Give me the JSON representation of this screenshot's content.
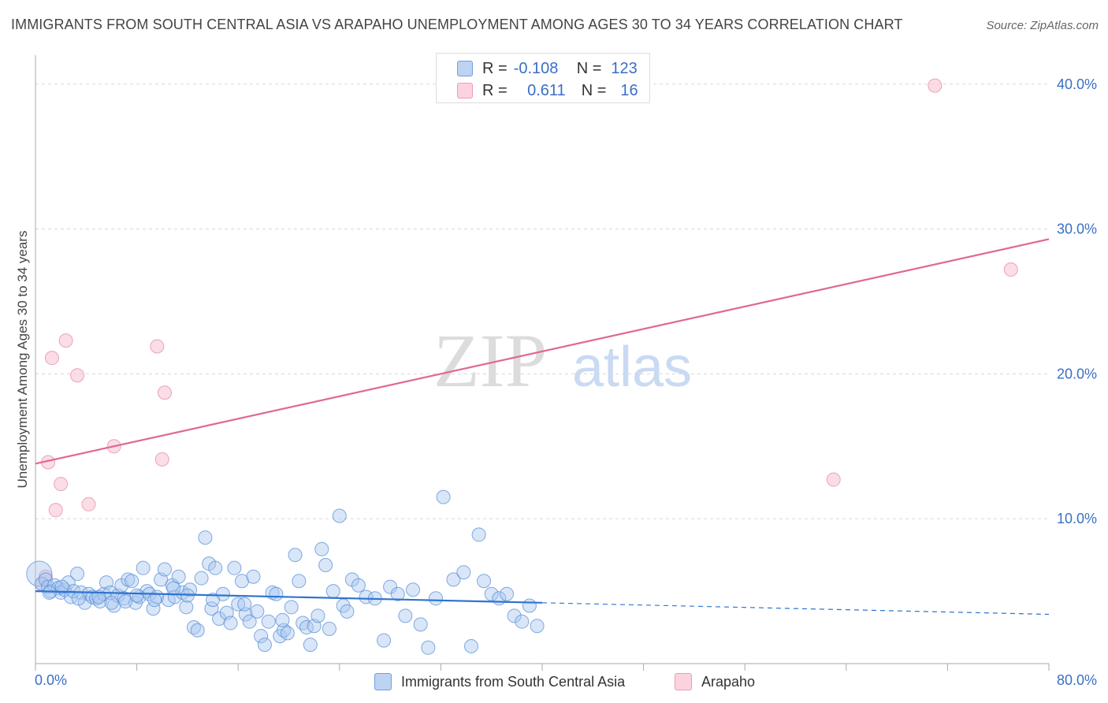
{
  "title": "IMMIGRANTS FROM SOUTH CENTRAL ASIA VS ARAPAHO UNEMPLOYMENT AMONG AGES 30 TO 34 YEARS CORRELATION CHART",
  "source": "Source: ZipAtlas.com",
  "watermark": {
    "zip": "ZIP",
    "atlas": "atlas"
  },
  "legend": {
    "rows": [
      {
        "r_label": "R =",
        "r_value": "-0.108",
        "n_label": "N =",
        "n_value": "123",
        "color": "#6fa0e0"
      },
      {
        "r_label": "R =",
        "r_value": "0.611",
        "n_label": "N =",
        "n_value": "16",
        "color": "#f09ab4"
      }
    ]
  },
  "bottom_legend": {
    "series1": "Immigrants from South Central Asia",
    "series2": "Arapaho"
  },
  "colors": {
    "blue_fill": "#a9c8f0",
    "blue_stroke": "#5b8fd6",
    "blue_line": "#2f74d0",
    "pink_fill": "#f7c6d4",
    "pink_stroke": "#e98fab",
    "pink_line": "#e06890",
    "tick_text": "#3a6fc4",
    "grid": "#d8d8d8"
  },
  "chart_data": {
    "type": "scatter",
    "title": "IMMIGRANTS FROM SOUTH CENTRAL ASIA VS ARAPAHO UNEMPLOYMENT AMONG AGES 30 TO 34 YEARS CORRELATION CHART",
    "xlabel": "",
    "ylabel": "Unemployment Among Ages 30 to 34 years",
    "xlim": [
      0,
      80
    ],
    "ylim": [
      0,
      42
    ],
    "x_tick_labels": [
      "0.0%",
      "80.0%"
    ],
    "y_ticks": [
      10,
      20,
      30,
      40
    ],
    "y_tick_labels": [
      "10.0%",
      "20.0%",
      "30.0%",
      "40.0%"
    ],
    "grid": true,
    "legend_position": "top-center",
    "series": [
      {
        "name": "Immigrants from South Central Asia",
        "r": -0.108,
        "n": 123,
        "trend": {
          "x": [
            0,
            40
          ],
          "y": [
            5.0,
            4.2
          ],
          "dashed_x": [
            40,
            80
          ],
          "dashed_y": [
            4.2,
            3.4
          ]
        },
        "points": [
          [
            0.3,
            6.2
          ],
          [
            0.5,
            5.5
          ],
          [
            0.8,
            5.8
          ],
          [
            1.0,
            5.3
          ],
          [
            1.2,
            5.0
          ],
          [
            1.5,
            5.4
          ],
          [
            1.8,
            5.2
          ],
          [
            2.0,
            4.9
          ],
          [
            2.3,
            5.1
          ],
          [
            2.6,
            5.6
          ],
          [
            2.8,
            4.6
          ],
          [
            3.0,
            5.0
          ],
          [
            3.3,
            6.2
          ],
          [
            3.6,
            4.9
          ],
          [
            3.9,
            4.2
          ],
          [
            4.2,
            4.8
          ],
          [
            4.5,
            4.6
          ],
          [
            4.8,
            4.5
          ],
          [
            5.1,
            4.3
          ],
          [
            5.4,
            4.8
          ],
          [
            5.6,
            5.6
          ],
          [
            5.9,
            4.9
          ],
          [
            6.2,
            4.0
          ],
          [
            6.5,
            4.7
          ],
          [
            6.8,
            5.4
          ],
          [
            7.0,
            4.5
          ],
          [
            7.3,
            5.8
          ],
          [
            7.6,
            5.7
          ],
          [
            7.9,
            4.2
          ],
          [
            8.2,
            4.6
          ],
          [
            8.5,
            6.6
          ],
          [
            8.8,
            5.0
          ],
          [
            9.0,
            4.8
          ],
          [
            9.3,
            3.8
          ],
          [
            9.6,
            4.6
          ],
          [
            9.9,
            5.8
          ],
          [
            10.2,
            6.5
          ],
          [
            10.5,
            4.4
          ],
          [
            10.8,
            5.4
          ],
          [
            11.0,
            4.6
          ],
          [
            11.3,
            6.0
          ],
          [
            11.6,
            4.9
          ],
          [
            11.9,
            3.9
          ],
          [
            12.2,
            5.1
          ],
          [
            12.5,
            2.5
          ],
          [
            12.8,
            2.3
          ],
          [
            13.1,
            5.9
          ],
          [
            13.4,
            8.7
          ],
          [
            13.7,
            6.9
          ],
          [
            13.9,
            3.8
          ],
          [
            14.2,
            6.6
          ],
          [
            14.5,
            3.1
          ],
          [
            14.8,
            4.8
          ],
          [
            15.1,
            3.5
          ],
          [
            15.4,
            2.8
          ],
          [
            15.7,
            6.6
          ],
          [
            16.0,
            4.1
          ],
          [
            16.3,
            5.7
          ],
          [
            16.6,
            3.4
          ],
          [
            16.9,
            2.9
          ],
          [
            17.2,
            6.0
          ],
          [
            17.5,
            3.6
          ],
          [
            17.8,
            1.9
          ],
          [
            18.1,
            1.3
          ],
          [
            18.4,
            2.9
          ],
          [
            18.7,
            4.9
          ],
          [
            19.0,
            4.8
          ],
          [
            19.3,
            1.9
          ],
          [
            19.6,
            2.3
          ],
          [
            19.9,
            2.1
          ],
          [
            20.2,
            3.9
          ],
          [
            20.5,
            7.5
          ],
          [
            20.8,
            5.7
          ],
          [
            21.1,
            2.8
          ],
          [
            21.4,
            2.5
          ],
          [
            21.7,
            1.3
          ],
          [
            22.0,
            2.6
          ],
          [
            22.3,
            3.3
          ],
          [
            22.6,
            7.9
          ],
          [
            22.9,
            6.8
          ],
          [
            23.2,
            2.4
          ],
          [
            23.5,
            5.0
          ],
          [
            24.0,
            10.2
          ],
          [
            24.3,
            4.0
          ],
          [
            24.6,
            3.6
          ],
          [
            25.0,
            5.8
          ],
          [
            25.5,
            5.4
          ],
          [
            26.1,
            4.6
          ],
          [
            26.8,
            4.5
          ],
          [
            27.5,
            1.6
          ],
          [
            28.0,
            5.3
          ],
          [
            28.6,
            4.8
          ],
          [
            29.2,
            3.3
          ],
          [
            29.8,
            5.1
          ],
          [
            30.4,
            2.7
          ],
          [
            31.0,
            1.1
          ],
          [
            31.6,
            4.5
          ],
          [
            32.2,
            11.5
          ],
          [
            33.0,
            5.8
          ],
          [
            33.8,
            6.3
          ],
          [
            34.4,
            1.2
          ],
          [
            35.0,
            8.9
          ],
          [
            35.4,
            5.7
          ],
          [
            36.0,
            4.8
          ],
          [
            36.6,
            4.5
          ],
          [
            37.2,
            4.8
          ],
          [
            37.8,
            3.3
          ],
          [
            38.4,
            2.9
          ],
          [
            39.0,
            4.0
          ],
          [
            39.6,
            2.6
          ],
          [
            1.1,
            4.9
          ],
          [
            2.1,
            5.3
          ],
          [
            3.4,
            4.5
          ],
          [
            5.0,
            4.6
          ],
          [
            6.0,
            4.2
          ],
          [
            7.1,
            4.3
          ],
          [
            8.0,
            4.7
          ],
          [
            9.4,
            4.4
          ],
          [
            10.9,
            5.2
          ],
          [
            12.0,
            4.7
          ],
          [
            14.0,
            4.4
          ],
          [
            16.5,
            4.1
          ],
          [
            19.5,
            3.0
          ]
        ]
      },
      {
        "name": "Arapaho",
        "r": 0.611,
        "n": 16,
        "trend": {
          "x": [
            0,
            80
          ],
          "y": [
            13.8,
            29.3
          ]
        },
        "points": [
          [
            0.5,
            5.5
          ],
          [
            0.8,
            6.0
          ],
          [
            1.0,
            13.9
          ],
          [
            1.3,
            21.1
          ],
          [
            1.6,
            10.6
          ],
          [
            2.0,
            12.4
          ],
          [
            2.4,
            22.3
          ],
          [
            3.3,
            19.9
          ],
          [
            4.2,
            11.0
          ],
          [
            6.2,
            15.0
          ],
          [
            9.6,
            21.9
          ],
          [
            10.0,
            14.1
          ],
          [
            10.2,
            18.7
          ],
          [
            63.0,
            12.7
          ],
          [
            71.0,
            39.9
          ],
          [
            77.0,
            27.2
          ]
        ]
      }
    ]
  }
}
